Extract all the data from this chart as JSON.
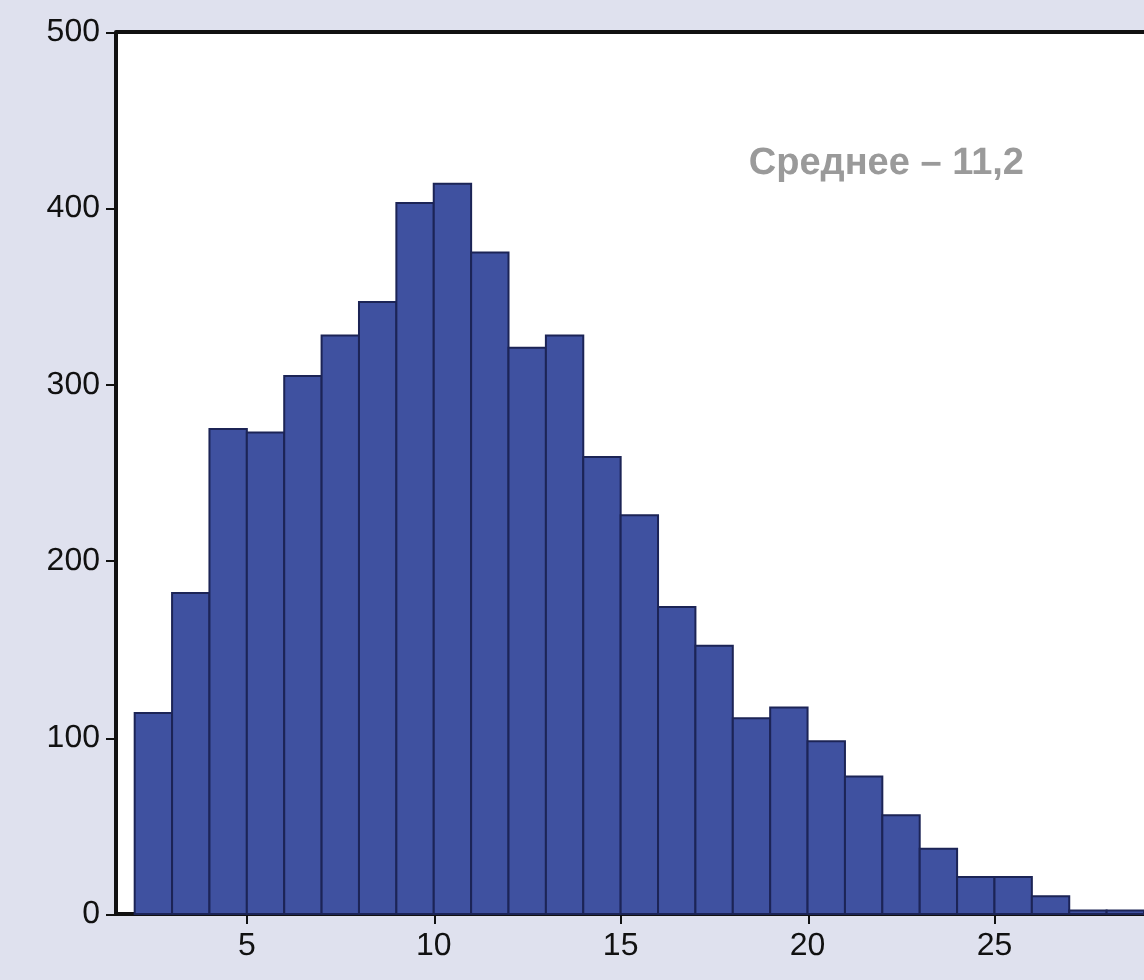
{
  "chart_data": {
    "type": "histogram",
    "bins": [
      2,
      3,
      4,
      5,
      6,
      7,
      8,
      9,
      10,
      11,
      12,
      13,
      14,
      15,
      16,
      17,
      18,
      19,
      20,
      21,
      22,
      23,
      24,
      25,
      26,
      27,
      28,
      29
    ],
    "values": [
      114,
      182,
      275,
      273,
      305,
      328,
      347,
      403,
      414,
      375,
      321,
      328,
      259,
      226,
      174,
      152,
      111,
      117,
      98,
      78,
      56,
      37,
      21,
      21,
      10,
      2,
      2
    ],
    "color": "#3f51a0",
    "xlim": [
      1.5,
      29
    ],
    "xticks": [
      5,
      10,
      15,
      20,
      25
    ],
    "ylim": [
      0,
      500
    ],
    "yticks": [
      0,
      100,
      200,
      300,
      400,
      500
    ],
    "grid": false,
    "annotations": [
      "Среднее – 11,2"
    ]
  }
}
